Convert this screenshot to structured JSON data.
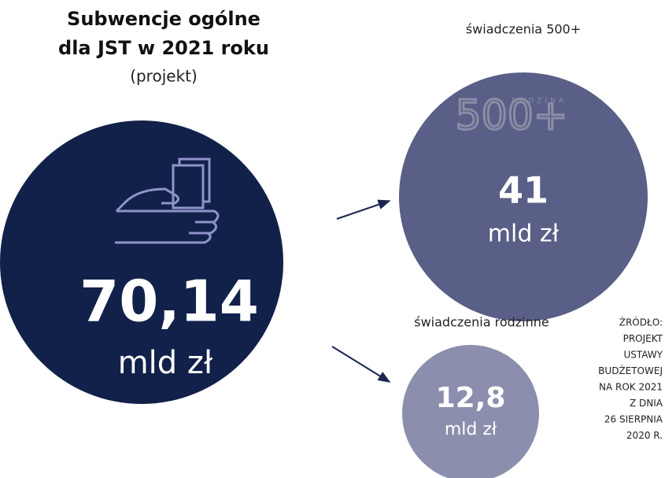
{
  "header": {
    "title_lines": [
      "Subwencje ogólne",
      "dla JST w 2021 roku"
    ],
    "subtitle": "(projekt)"
  },
  "main": {
    "amount": "70,14",
    "unit": "mld zł"
  },
  "items": [
    {
      "label": "świadczenia 500+",
      "logo": "500+",
      "logo_small": "RODZINA",
      "amount": "41",
      "unit": "mld zł"
    },
    {
      "label": "świadczenia rodzinne",
      "amount": "12,8",
      "unit": "mld zł"
    }
  ],
  "source": [
    "ŹRÓDŁO:",
    "PROJEKT",
    "USTAWY",
    "BUDŻETOWEJ",
    "NA ROK 2021",
    "Z DNIA",
    "26 SIERPNIA",
    "2020 R."
  ]
}
